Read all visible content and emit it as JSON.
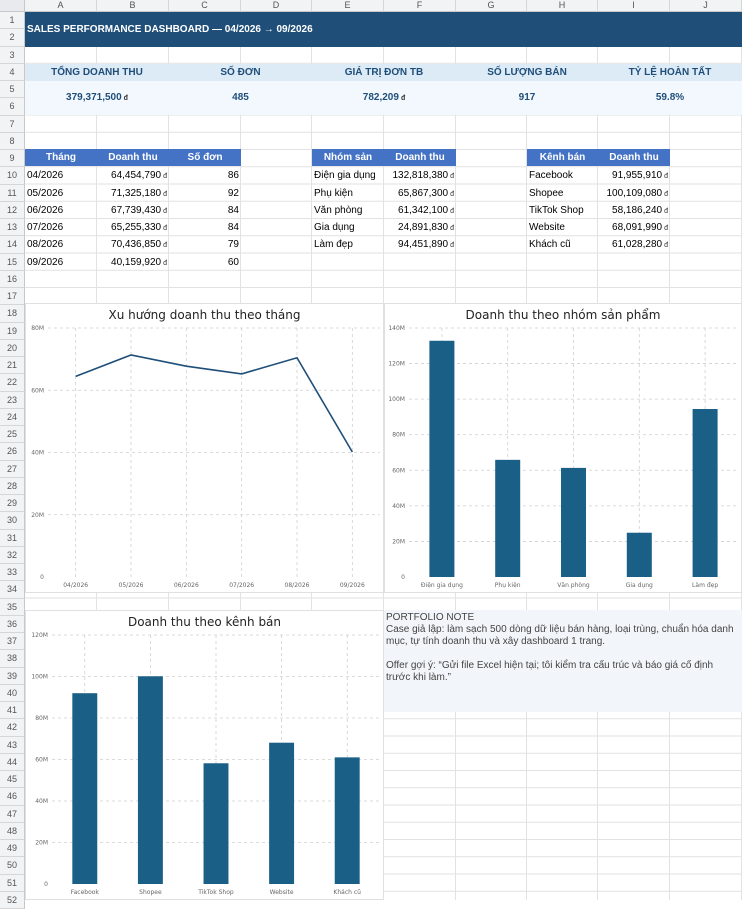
{
  "sheet": {
    "columns": [
      "A",
      "B",
      "C",
      "D",
      "E",
      "F",
      "G",
      "H",
      "I",
      "J"
    ],
    "rows": [
      "1",
      "2",
      "3",
      "4",
      "5",
      "6",
      "7",
      "8",
      "9",
      "10",
      "11",
      "12",
      "13",
      "14",
      "15",
      "16",
      "17",
      "18",
      "19",
      "20",
      "21",
      "22",
      "23",
      "24",
      "25",
      "26",
      "27",
      "28",
      "29",
      "30",
      "31",
      "32",
      "33",
      "34",
      "35",
      "36",
      "37",
      "38",
      "39",
      "40",
      "41",
      "42",
      "43",
      "44",
      "45",
      "46",
      "47",
      "48",
      "49",
      "50",
      "51",
      "52"
    ]
  },
  "title": "SALES PERFORMANCE DASHBOARD — 04/2026 → 09/2026",
  "kpis": [
    {
      "label": "TỔNG DOANH THU",
      "value": "379,371,500",
      "unit": "đ"
    },
    {
      "label": "SỐ ĐƠN",
      "value": "485",
      "unit": ""
    },
    {
      "label": "GIÁ TRỊ ĐƠN TB",
      "value": "782,209",
      "unit": "đ"
    },
    {
      "label": "SỐ LƯỢNG BÁN",
      "value": "917",
      "unit": ""
    },
    {
      "label": "TỶ LỆ HOÀN TẤT",
      "value": "59.8%",
      "unit": ""
    }
  ],
  "currency_symbol": "đ",
  "monthly_table": {
    "headers": [
      "Tháng",
      "Doanh thu",
      "Số đơn"
    ],
    "rows": [
      {
        "month": "04/2026",
        "revenue": "64,454,790",
        "orders": "86"
      },
      {
        "month": "05/2026",
        "revenue": "71,325,180",
        "orders": "92"
      },
      {
        "month": "06/2026",
        "revenue": "67,739,430",
        "orders": "84"
      },
      {
        "month": "07/2026",
        "revenue": "65,255,330",
        "orders": "84"
      },
      {
        "month": "08/2026",
        "revenue": "70,436,850",
        "orders": "79"
      },
      {
        "month": "09/2026",
        "revenue": "40,159,920",
        "orders": "60"
      }
    ]
  },
  "category_table": {
    "headers": [
      "Nhóm sản phẩm",
      "Doanh thu"
    ],
    "rows": [
      {
        "name": "Điện gia dụng",
        "revenue": "132,818,380"
      },
      {
        "name": "Phụ kiện",
        "revenue": "65,867,300"
      },
      {
        "name": "Văn phòng",
        "revenue": "61,342,100"
      },
      {
        "name": "Gia dụng",
        "revenue": "24,891,830"
      },
      {
        "name": "Làm đẹp",
        "revenue": "94,451,890"
      }
    ]
  },
  "channel_table": {
    "headers": [
      "Kênh bán",
      "Doanh thu"
    ],
    "rows": [
      {
        "name": "Facebook",
        "revenue": "91,955,910"
      },
      {
        "name": "Shopee",
        "revenue": "100,109,080"
      },
      {
        "name": "TikTok Shop",
        "revenue": "58,186,240"
      },
      {
        "name": "Website",
        "revenue": "68,091,990"
      },
      {
        "name": "Khách cũ",
        "revenue": "61,028,280"
      }
    ]
  },
  "note": {
    "heading": "PORTFOLIO NOTE",
    "body": "Case giả lập: làm sạch 500 dòng dữ liệu bán hàng, loại trùng, chuẩn hóa danh mục, tự tính doanh thu và xây dashboard 1 trang.",
    "offer": "Offer gợi ý: “Gửi file Excel hiện tại; tôi kiểm tra cấu trúc và báo giá cố định trước khi làm.”"
  },
  "colors": {
    "primary": "#1f4e79",
    "header": "#4472c4",
    "bar": "#1a5f85",
    "line": "#1f4e79"
  },
  "chart_data": [
    {
      "type": "line",
      "title": "Xu hướng doanh thu theo tháng",
      "x": [
        "04/2026",
        "05/2026",
        "06/2026",
        "07/2026",
        "08/2026",
        "09/2026"
      ],
      "y": [
        64454790,
        71325180,
        67739430,
        65255330,
        70436850,
        40159920
      ],
      "ylim": [
        0,
        80000000
      ],
      "yticks": [
        0,
        20000000,
        40000000,
        60000000,
        80000000
      ],
      "ytick_labels": [
        "0",
        "20M",
        "40M",
        "60M",
        "80M"
      ],
      "grid": true
    },
    {
      "type": "bar",
      "title": "Doanh thu theo nhóm sản phẩm",
      "categories": [
        "Điện gia dụng",
        "Phụ kiện",
        "Văn phòng",
        "Gia dụng",
        "Làm đẹp"
      ],
      "values": [
        132818380,
        65867300,
        61342100,
        24891830,
        94451890
      ],
      "ylim": [
        0,
        140000000
      ],
      "yticks": [
        0,
        20000000,
        40000000,
        60000000,
        80000000,
        100000000,
        120000000,
        140000000
      ],
      "ytick_labels": [
        "0",
        "20M",
        "40M",
        "60M",
        "80M",
        "100M",
        "120M",
        "140M"
      ],
      "grid": true
    },
    {
      "type": "bar",
      "title": "Doanh thu theo kênh bán",
      "categories": [
        "Facebook",
        "Shopee",
        "TikTok Shop",
        "Website",
        "Khách cũ"
      ],
      "values": [
        91955910,
        100109080,
        58186240,
        68091990,
        61028280
      ],
      "ylim": [
        0,
        120000000
      ],
      "yticks": [
        0,
        20000000,
        40000000,
        60000000,
        80000000,
        100000000,
        120000000
      ],
      "ytick_labels": [
        "0",
        "20M",
        "40M",
        "60M",
        "80M",
        "100M",
        "120M"
      ],
      "grid": true
    }
  ]
}
